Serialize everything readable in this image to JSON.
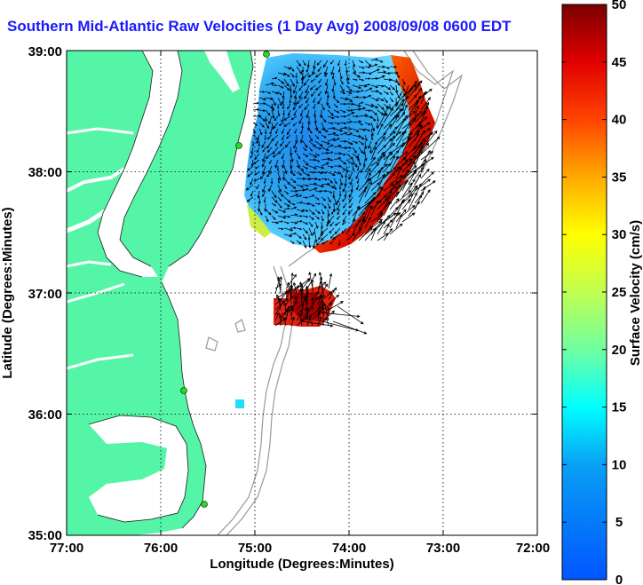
{
  "title": "Southern Mid-Atlantic Raw Velocities (1 Day Avg) 2008/09/08 0600 EDT",
  "x_axis": {
    "label": "Longitude (Degrees:Minutes)",
    "ticks": [
      "77:00",
      "76:00",
      "75:00",
      "74:00",
      "73:00",
      "72:00"
    ]
  },
  "y_axis": {
    "label": "Latitude (Degrees:Minutes)",
    "ticks": [
      "39:00",
      "38:00",
      "37:00",
      "36:00",
      "35:00"
    ]
  },
  "colorbar": {
    "label": "Surface Velocity (cm/s)",
    "ticks": [
      "0",
      "5",
      "10",
      "15",
      "20",
      "25",
      "30",
      "35",
      "40",
      "45",
      "50"
    ],
    "min": 0,
    "max": 50
  },
  "colors": {
    "land": "#55f5a8",
    "water": "#ffffff",
    "title": "#1a1aff",
    "station": "#22dd22",
    "bathymetry": "#999999"
  },
  "stations": [
    "station-1",
    "station-2",
    "station-3",
    "station-4"
  ]
}
